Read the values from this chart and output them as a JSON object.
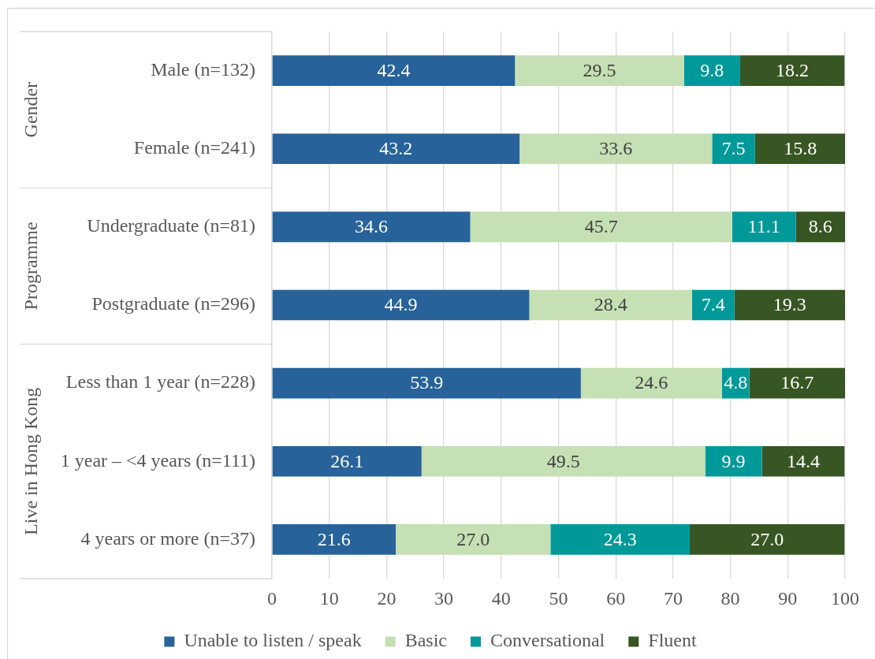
{
  "chart_data": {
    "type": "bar",
    "orientation": "horizontal",
    "stacked": true,
    "categories": [
      "Male (n=132)",
      "Female (n=241)",
      "Undergraduate (n=81)",
      "Postgraduate (n=296)",
      "Less than 1 year (n=228)",
      "1 year – <4 years (n=111)",
      "4 years or more (n=37)"
    ],
    "series": [
      {
        "name": "Unable to listen / speak",
        "color": "#27639a",
        "values": [
          42.4,
          43.2,
          34.6,
          44.9,
          53.9,
          26.1,
          21.6
        ],
        "value_labels": [
          "42.4",
          "43.2",
          "34.6",
          "44.9",
          "53.9",
          "26.1",
          "21.6"
        ]
      },
      {
        "name": "Basic",
        "color": "#c5e0b4",
        "values": [
          29.5,
          33.6,
          45.7,
          28.4,
          24.6,
          49.5,
          27.0
        ],
        "value_labels": [
          "29.5",
          "33.6",
          "45.7",
          "28.4",
          "24.6",
          "49.5",
          "27.0"
        ]
      },
      {
        "name": "Conversational",
        "color": "#009999",
        "values": [
          9.8,
          7.5,
          11.1,
          7.4,
          4.8,
          9.9,
          24.3
        ],
        "value_labels": [
          "9.8",
          "7.5",
          "11.1",
          "7.4",
          "4.8",
          "9.9",
          "24.3"
        ]
      },
      {
        "name": "Fluent",
        "color": "#375623",
        "values": [
          18.2,
          15.8,
          8.6,
          19.3,
          16.7,
          14.4,
          27.0
        ],
        "value_labels": [
          "18.2",
          "15.8",
          "8.6",
          "19.3",
          "16.7",
          "14.4",
          "27.0"
        ]
      }
    ],
    "xlim": [
      0,
      100
    ],
    "xticks": [
      0,
      10,
      20,
      30,
      40,
      50,
      60,
      70,
      80,
      90,
      100
    ],
    "grid": "x",
    "legend": "bottom",
    "annotations": [
      "Gender",
      "Programme",
      "Live in Hong Kong"
    ]
  }
}
